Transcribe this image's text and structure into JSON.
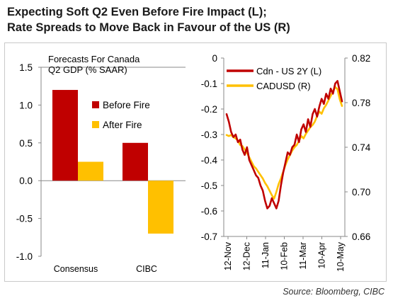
{
  "title": {
    "line1": "Expecting Soft Q2 Even Before Fire Impact (L);",
    "line2": "Rate Spreads to Move Back in Favour of the US (R)"
  },
  "source": "Source: Bloomberg, CIBC",
  "colors": {
    "red": "#c00000",
    "yellow": "#ffc000"
  },
  "chart_data": [
    {
      "type": "bar",
      "title": "Forecasts For Canada Q2 GDP (% SAAR)",
      "title_lines": [
        "Forecasts For Canada",
        "Q2 GDP (% SAAR)"
      ],
      "categories": [
        "Consensus",
        "CIBC"
      ],
      "series": [
        {
          "name": "Before Fire",
          "color": "#c00000",
          "values": [
            1.2,
            0.5
          ]
        },
        {
          "name": "After Fire",
          "color": "#ffc000",
          "values": [
            0.25,
            -0.7
          ]
        }
      ],
      "ylim": [
        -1.0,
        1.5
      ],
      "yticks": [
        "1.5",
        "1.0",
        "0.5",
        "0.0",
        "-0.5",
        "-1.0"
      ],
      "legend": "right",
      "grid": false
    },
    {
      "type": "line",
      "x_labels": [
        "12-Nov",
        "12-Dec",
        "11-Jan",
        "10-Feb",
        "11-Mar",
        "10-Apr",
        "10-May"
      ],
      "series": [
        {
          "name": "Cdn - US 2Y (L)",
          "color": "#c00000",
          "axis": "left",
          "values": [
            -0.22,
            -0.25,
            -0.29,
            -0.31,
            -0.3,
            -0.33,
            -0.32,
            -0.36,
            -0.38,
            -0.35,
            -0.4,
            -0.42,
            -0.44,
            -0.46,
            -0.47,
            -0.5,
            -0.52,
            -0.56,
            -0.59,
            -0.58,
            -0.55,
            -0.57,
            -0.59,
            -0.56,
            -0.5,
            -0.45,
            -0.41,
            -0.37,
            -0.38,
            -0.35,
            -0.34,
            -0.3,
            -0.33,
            -0.28,
            -0.26,
            -0.29,
            -0.24,
            -0.27,
            -0.22,
            -0.2,
            -0.23,
            -0.19,
            -0.16,
            -0.18,
            -0.14,
            -0.16,
            -0.12,
            -0.14,
            -0.1,
            -0.09,
            -0.13,
            -0.17
          ]
        },
        {
          "name": "CADUSD (R)",
          "color": "#ffc000",
          "axis": "right",
          "values": [
            0.751,
            0.75,
            0.751,
            0.749,
            0.748,
            0.746,
            0.742,
            0.741,
            0.738,
            0.735,
            0.731,
            0.727,
            0.723,
            0.721,
            0.718,
            0.715,
            0.712,
            0.708,
            0.705,
            0.701,
            0.697,
            0.694,
            0.7,
            0.707,
            0.712,
            0.718,
            0.724,
            0.729,
            0.733,
            0.737,
            0.74,
            0.742,
            0.746,
            0.75,
            0.748,
            0.752,
            0.755,
            0.758,
            0.76,
            0.763,
            0.768,
            0.772,
            0.77,
            0.775,
            0.778,
            0.782,
            0.786,
            0.79,
            0.794,
            0.792,
            0.783,
            0.777
          ]
        }
      ],
      "left_axis": {
        "ylim": [
          -0.7,
          0
        ],
        "ticks": [
          "0",
          "-0.1",
          "-0.2",
          "-0.3",
          "-0.4",
          "-0.5",
          "-0.6",
          "-0.7"
        ]
      },
      "right_axis": {
        "ylim": [
          0.66,
          0.82
        ],
        "ticks": [
          "0.82",
          "0.78",
          "0.74",
          "0.70",
          "0.66"
        ]
      },
      "legend": "top"
    }
  ]
}
